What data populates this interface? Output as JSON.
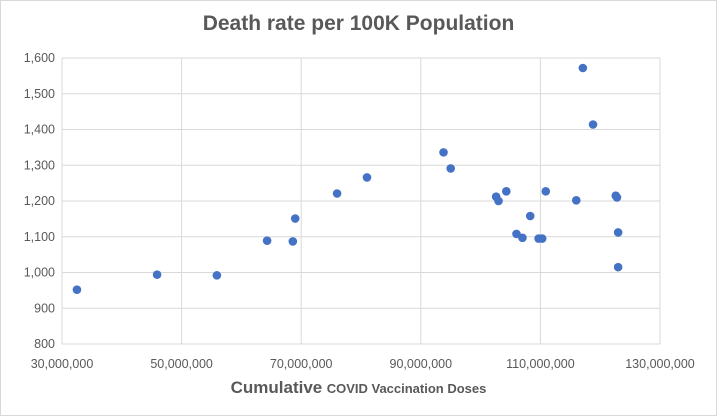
{
  "chart_data": {
    "type": "scatter",
    "title": "Death rate per 100K Population",
    "xlabel_main": "Cumulative",
    "xlabel_sub": "COVID Vaccination Doses",
    "ylabel": "",
    "xlim": [
      30000000,
      130000000
    ],
    "ylim": [
      800,
      1600
    ],
    "x_ticks": [
      30000000,
      50000000,
      70000000,
      90000000,
      110000000,
      130000000
    ],
    "x_tick_labels": [
      "30,000,000",
      "50,000,000",
      "70,000,000",
      "90,000,000",
      "110,000,000",
      "130,000,000"
    ],
    "y_ticks": [
      800,
      900,
      1000,
      1100,
      1200,
      1300,
      1400,
      1500,
      1600
    ],
    "y_tick_labels": [
      "800",
      "900",
      "1,000",
      "1,100",
      "1,200",
      "1,300",
      "1,400",
      "1,500",
      "1,600"
    ],
    "grid": true,
    "legend": "none",
    "marker_color": "#4472c4",
    "points": [
      {
        "x": 32500000,
        "y": 952
      },
      {
        "x": 45900000,
        "y": 994
      },
      {
        "x": 55900000,
        "y": 992
      },
      {
        "x": 64300000,
        "y": 1089
      },
      {
        "x": 68600000,
        "y": 1087
      },
      {
        "x": 69000000,
        "y": 1151
      },
      {
        "x": 76000000,
        "y": 1221
      },
      {
        "x": 81000000,
        "y": 1266
      },
      {
        "x": 93800000,
        "y": 1336
      },
      {
        "x": 95000000,
        "y": 1291
      },
      {
        "x": 102600000,
        "y": 1212
      },
      {
        "x": 103000000,
        "y": 1200
      },
      {
        "x": 104300000,
        "y": 1227
      },
      {
        "x": 106000000,
        "y": 1108
      },
      {
        "x": 107000000,
        "y": 1097
      },
      {
        "x": 108300000,
        "y": 1158
      },
      {
        "x": 109700000,
        "y": 1095
      },
      {
        "x": 110300000,
        "y": 1095
      },
      {
        "x": 110900000,
        "y": 1227
      },
      {
        "x": 116000000,
        "y": 1202
      },
      {
        "x": 117100000,
        "y": 1572
      },
      {
        "x": 118800000,
        "y": 1414
      },
      {
        "x": 122600000,
        "y": 1215
      },
      {
        "x": 122800000,
        "y": 1210
      },
      {
        "x": 123000000,
        "y": 1112
      },
      {
        "x": 123000000,
        "y": 1015
      }
    ]
  }
}
